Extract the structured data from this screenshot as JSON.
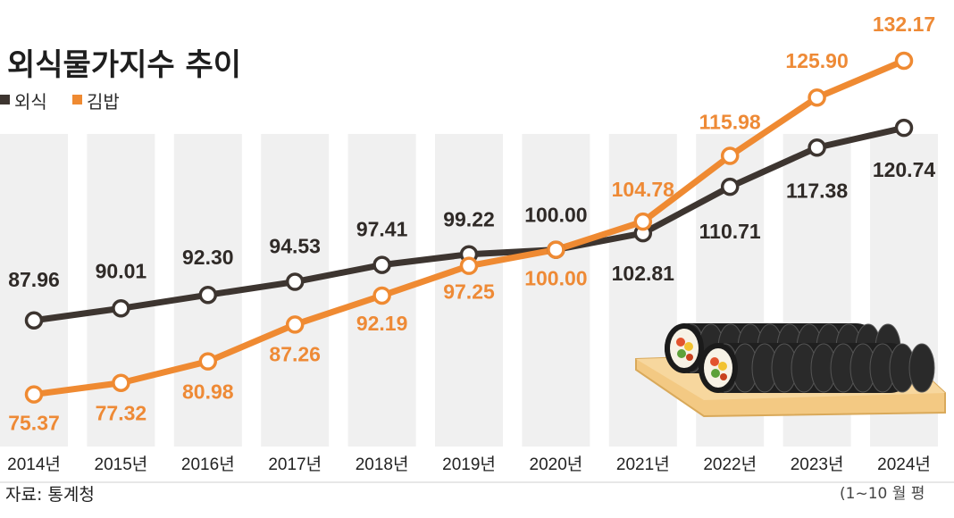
{
  "colors": {
    "dining": "#3d3530",
    "gimbap": "#ef8a32",
    "dining_label": "#2f2a27",
    "gimbap_label": "#ee8a36",
    "band": "#f0f0f0"
  },
  "chart_data": {
    "type": "line",
    "title": "외식물가지수 추이",
    "categories": [
      "2014년",
      "2015년",
      "2016년",
      "2017년",
      "2018년",
      "2019년",
      "2020년",
      "2021년",
      "2022년",
      "2023년",
      "2024년"
    ],
    "series": [
      {
        "name": "외식",
        "values": [
          87.96,
          90.01,
          92.3,
          94.53,
          97.41,
          99.22,
          100.0,
          102.81,
          110.71,
          117.38,
          120.74
        ]
      },
      {
        "name": "김밥",
        "values": [
          75.37,
          77.32,
          80.98,
          87.26,
          92.19,
          97.25,
          100.0,
          104.78,
          115.98,
          125.9,
          132.17
        ]
      }
    ],
    "value_labels": {
      "외식": [
        "87.96",
        "90.01",
        "92.30",
        "94.53",
        "97.41",
        "99.22",
        "100.00",
        "102.81",
        "110.71",
        "117.38",
        "120.74"
      ],
      "김밥": [
        "75.37",
        "77.32",
        "80.98",
        "87.26",
        "92.19",
        "97.25",
        "100.00",
        "104.78",
        "115.98",
        "125.90",
        "132.17"
      ]
    },
    "ylim": [
      70,
      135
    ],
    "grid": false,
    "legend_position": "top-left",
    "source": "자료: 통계청",
    "note": "(1~10 월 평"
  }
}
